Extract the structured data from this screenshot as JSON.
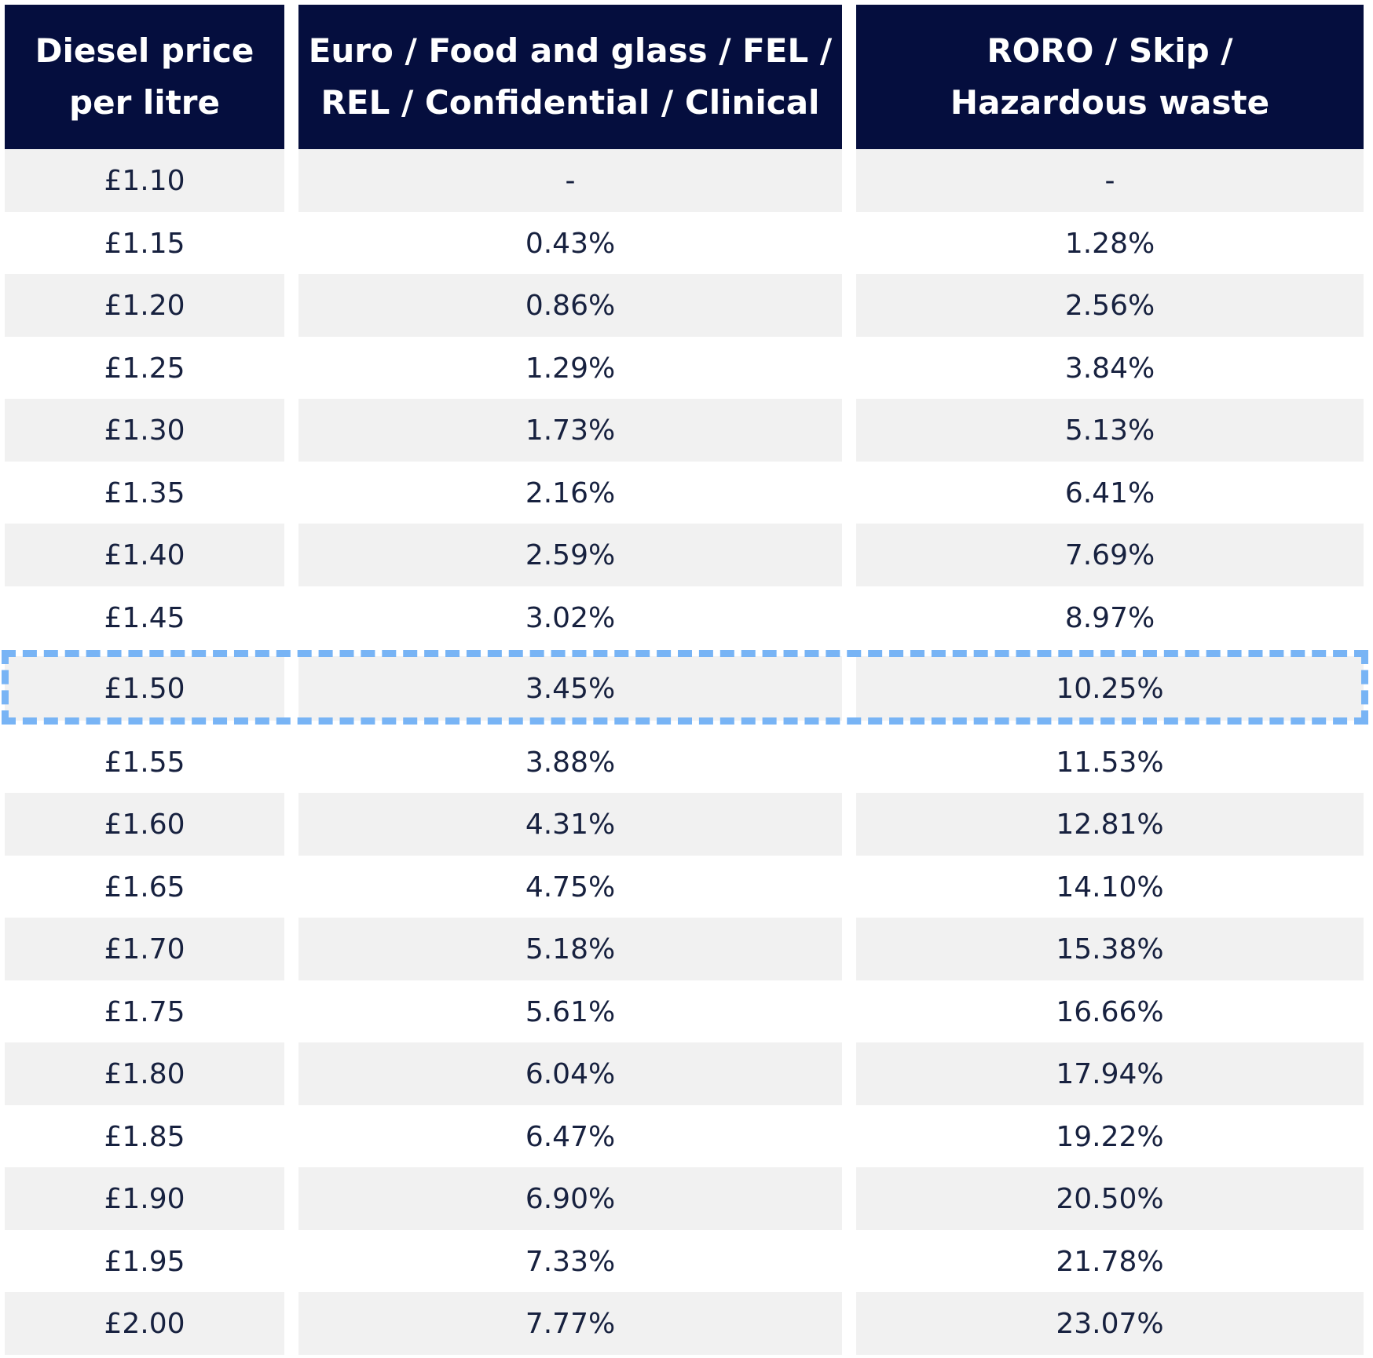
{
  "table": {
    "headers": [
      [
        "Diesel price",
        "per litre"
      ],
      [
        "Euro / Food and glass / FEL /",
        "REL / Confidential / Clinical"
      ],
      [
        "RORO / Skip /",
        "Hazardous waste"
      ]
    ],
    "rows": [
      [
        "£1.10",
        "-",
        "-"
      ],
      [
        "£1.15",
        "0.43%",
        "1.28%"
      ],
      [
        "£1.20",
        "0.86%",
        "2.56%"
      ],
      [
        "£1.25",
        "1.29%",
        "3.84%"
      ],
      [
        "£1.30",
        "1.73%",
        "5.13%"
      ],
      [
        "£1.35",
        "2.16%",
        "6.41%"
      ],
      [
        "£1.40",
        "2.59%",
        "7.69%"
      ],
      [
        "£1.45",
        "3.02%",
        "8.97%"
      ],
      [
        "£1.50",
        "3.45%",
        "10.25%"
      ],
      [
        "£1.55",
        "3.88%",
        "11.53%"
      ],
      [
        "£1.60",
        "4.31%",
        "12.81%"
      ],
      [
        "£1.65",
        "4.75%",
        "14.10%"
      ],
      [
        "£1.70",
        "5.18%",
        "15.38%"
      ],
      [
        "£1.75",
        "5.61%",
        "16.66%"
      ],
      [
        "£1.80",
        "6.04%",
        "17.94%"
      ],
      [
        "£1.85",
        "6.47%",
        "19.22%"
      ],
      [
        "£1.90",
        "6.90%",
        "20.50%"
      ],
      [
        "£1.95",
        "7.33%",
        "21.78%"
      ],
      [
        "£2.00",
        "7.77%",
        "23.07%"
      ]
    ],
    "highlighted_row": 8,
    "colors": {
      "header_background": "#050e3e",
      "header_text": "#ffffff",
      "row_shade": "#f1f1f1",
      "body_text": "#17213f",
      "highlight_border": "#78b4f5"
    }
  }
}
